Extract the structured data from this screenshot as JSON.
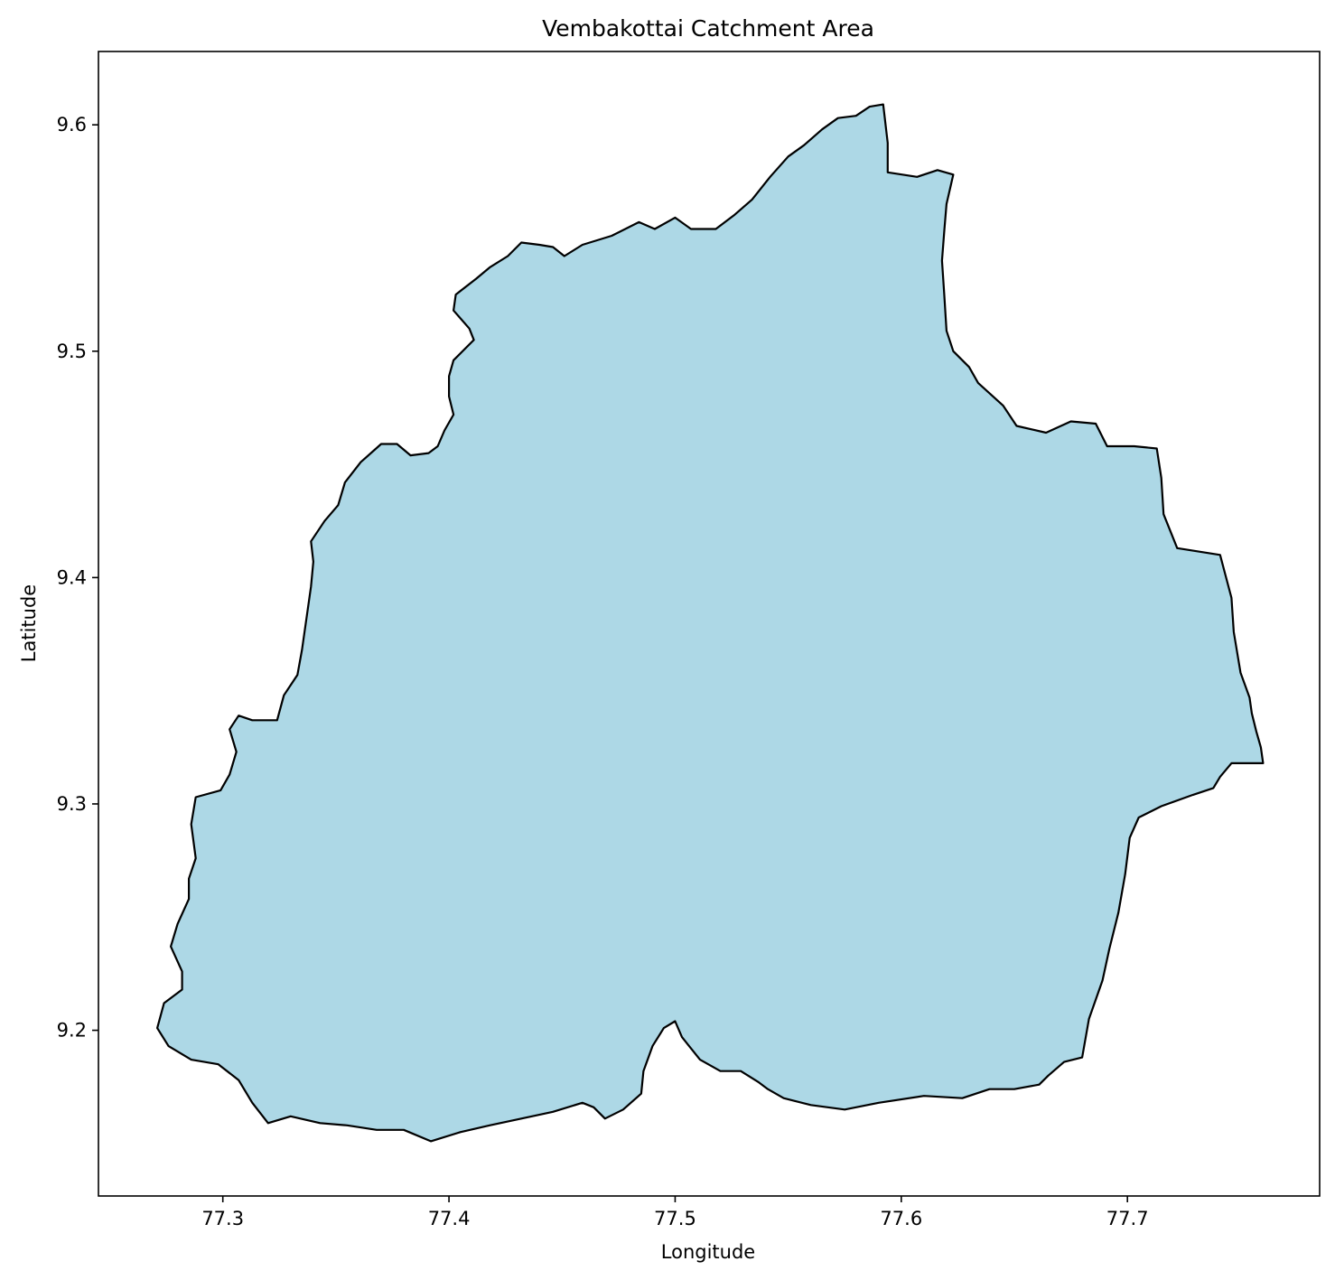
{
  "title": "Vembakottai Catchment Area",
  "xlabel": "Longitude",
  "ylabel": "Latitude",
  "colors": {
    "fill": "#add8e6",
    "outline": "#000000",
    "frame": "#000000",
    "background": "#ffffff"
  },
  "x_axis": {
    "lim": [
      77.245,
      77.785
    ],
    "ticks": [
      77.3,
      77.4,
      77.5,
      77.6,
      77.7
    ],
    "tick_labels": [
      "77.3",
      "77.4",
      "77.5",
      "77.6",
      "77.7"
    ]
  },
  "y_axis": {
    "lim": [
      9.1268,
      9.6324
    ],
    "ticks": [
      9.2,
      9.3,
      9.4,
      9.5,
      9.6
    ],
    "tick_labels": [
      "9.2",
      "9.3",
      "9.4",
      "9.5",
      "9.6"
    ]
  },
  "grid": false,
  "legend": "none",
  "boundary": [
    [
      77.592,
      9.609
    ],
    [
      77.594,
      9.592
    ],
    [
      77.594,
      9.579
    ],
    [
      77.607,
      9.577
    ],
    [
      77.616,
      9.58
    ],
    [
      77.623,
      9.578
    ],
    [
      77.62,
      9.565
    ],
    [
      77.619,
      9.553
    ],
    [
      77.618,
      9.54
    ],
    [
      77.619,
      9.525
    ],
    [
      77.62,
      9.509
    ],
    [
      77.623,
      9.5
    ],
    [
      77.63,
      9.493
    ],
    [
      77.634,
      9.486
    ],
    [
      77.645,
      9.476
    ],
    [
      77.651,
      9.467
    ],
    [
      77.664,
      9.464
    ],
    [
      77.675,
      9.469
    ],
    [
      77.686,
      9.468
    ],
    [
      77.691,
      9.458
    ],
    [
      77.703,
      9.458
    ],
    [
      77.713,
      9.457
    ],
    [
      77.715,
      9.444
    ],
    [
      77.716,
      9.428
    ],
    [
      77.722,
      9.413
    ],
    [
      77.741,
      9.41
    ],
    [
      77.746,
      9.391
    ],
    [
      77.747,
      9.376
    ],
    [
      77.75,
      9.358
    ],
    [
      77.754,
      9.347
    ],
    [
      77.755,
      9.34
    ],
    [
      77.757,
      9.332
    ],
    [
      77.759,
      9.325
    ],
    [
      77.76,
      9.318
    ],
    [
      77.752,
      9.318
    ],
    [
      77.746,
      9.318
    ],
    [
      77.741,
      9.312
    ],
    [
      77.738,
      9.307
    ],
    [
      77.729,
      9.304
    ],
    [
      77.715,
      9.299
    ],
    [
      77.705,
      9.294
    ],
    [
      77.701,
      9.285
    ],
    [
      77.699,
      9.269
    ],
    [
      77.696,
      9.252
    ],
    [
      77.692,
      9.236
    ],
    [
      77.689,
      9.222
    ],
    [
      77.683,
      9.205
    ],
    [
      77.68,
      9.188
    ],
    [
      77.672,
      9.186
    ],
    [
      77.665,
      9.18
    ],
    [
      77.661,
      9.176
    ],
    [
      77.65,
      9.174
    ],
    [
      77.639,
      9.174
    ],
    [
      77.627,
      9.17
    ],
    [
      77.61,
      9.171
    ],
    [
      77.59,
      9.168
    ],
    [
      77.575,
      9.165
    ],
    [
      77.56,
      9.167
    ],
    [
      77.548,
      9.17
    ],
    [
      77.541,
      9.174
    ],
    [
      77.537,
      9.177
    ],
    [
      77.529,
      9.182
    ],
    [
      77.52,
      9.182
    ],
    [
      77.511,
      9.187
    ],
    [
      77.503,
      9.197
    ],
    [
      77.5,
      9.204
    ],
    [
      77.495,
      9.201
    ],
    [
      77.49,
      9.193
    ],
    [
      77.486,
      9.182
    ],
    [
      77.485,
      9.172
    ],
    [
      77.477,
      9.165
    ],
    [
      77.469,
      9.161
    ],
    [
      77.464,
      9.166
    ],
    [
      77.459,
      9.168
    ],
    [
      77.446,
      9.164
    ],
    [
      77.432,
      9.161
    ],
    [
      77.418,
      9.158
    ],
    [
      77.405,
      9.155
    ],
    [
      77.392,
      9.151
    ],
    [
      77.38,
      9.156
    ],
    [
      77.368,
      9.156
    ],
    [
      77.355,
      9.158
    ],
    [
      77.343,
      9.159
    ],
    [
      77.33,
      9.162
    ],
    [
      77.32,
      9.159
    ],
    [
      77.313,
      9.168
    ],
    [
      77.307,
      9.178
    ],
    [
      77.298,
      9.185
    ],
    [
      77.286,
      9.187
    ],
    [
      77.276,
      9.193
    ],
    [
      77.271,
      9.201
    ],
    [
      77.274,
      9.212
    ],
    [
      77.282,
      9.218
    ],
    [
      77.282,
      9.226
    ],
    [
      77.277,
      9.237
    ],
    [
      77.28,
      9.247
    ],
    [
      77.285,
      9.258
    ],
    [
      77.285,
      9.267
    ],
    [
      77.288,
      9.276
    ],
    [
      77.286,
      9.291
    ],
    [
      77.288,
      9.303
    ],
    [
      77.299,
      9.306
    ],
    [
      77.303,
      9.313
    ],
    [
      77.306,
      9.323
    ],
    [
      77.303,
      9.333
    ],
    [
      77.307,
      9.339
    ],
    [
      77.313,
      9.337
    ],
    [
      77.324,
      9.337
    ],
    [
      77.327,
      9.348
    ],
    [
      77.333,
      9.357
    ],
    [
      77.335,
      9.368
    ],
    [
      77.337,
      9.382
    ],
    [
      77.339,
      9.396
    ],
    [
      77.34,
      9.407
    ],
    [
      77.339,
      9.416
    ],
    [
      77.345,
      9.425
    ],
    [
      77.351,
      9.432
    ],
    [
      77.354,
      9.442
    ],
    [
      77.361,
      9.451
    ],
    [
      77.37,
      9.459
    ],
    [
      77.377,
      9.459
    ],
    [
      77.383,
      9.454
    ],
    [
      77.391,
      9.455
    ],
    [
      77.395,
      9.458
    ],
    [
      77.398,
      9.465
    ],
    [
      77.402,
      9.472
    ],
    [
      77.4,
      9.48
    ],
    [
      77.4,
      9.489
    ],
    [
      77.402,
      9.496
    ],
    [
      77.411,
      9.505
    ],
    [
      77.409,
      9.51
    ],
    [
      77.402,
      9.518
    ],
    [
      77.403,
      9.525
    ],
    [
      77.412,
      9.532
    ],
    [
      77.418,
      9.537
    ],
    [
      77.426,
      9.542
    ],
    [
      77.432,
      9.548
    ],
    [
      77.44,
      9.547
    ],
    [
      77.446,
      9.546
    ],
    [
      77.451,
      9.542
    ],
    [
      77.459,
      9.547
    ],
    [
      77.472,
      9.551
    ],
    [
      77.484,
      9.557
    ],
    [
      77.491,
      9.554
    ],
    [
      77.5,
      9.559
    ],
    [
      77.507,
      9.554
    ],
    [
      77.518,
      9.554
    ],
    [
      77.526,
      9.56
    ],
    [
      77.534,
      9.567
    ],
    [
      77.542,
      9.577
    ],
    [
      77.55,
      9.586
    ],
    [
      77.557,
      9.591
    ],
    [
      77.565,
      9.598
    ],
    [
      77.572,
      9.603
    ],
    [
      77.58,
      9.604
    ],
    [
      77.586,
      9.608
    ],
    [
      77.592,
      9.609
    ]
  ]
}
